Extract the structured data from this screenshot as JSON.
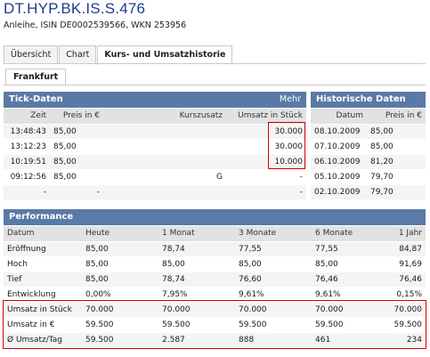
{
  "header": {
    "title": "DT.HYP.BK.IS.S.476",
    "subtitle": "Anleihe, ISIN DE0002539566, WKN 253956"
  },
  "tabs": [
    {
      "label": "Übersicht"
    },
    {
      "label": "Chart"
    },
    {
      "label": "Kurs- und Umsatzhistorie"
    }
  ],
  "subtabs": [
    {
      "label": "Frankfurt"
    }
  ],
  "tick": {
    "title": "Tick-Daten",
    "more": "Mehr",
    "columns": [
      "Zeit",
      "Preis in €",
      "Kurszusatz",
      "Umsatz in Stück"
    ],
    "rows": [
      [
        "13:48:43",
        "85,00",
        "",
        "30.000"
      ],
      [
        "13:12:23",
        "85,00",
        "",
        "30.000"
      ],
      [
        "10:19:51",
        "85,00",
        "",
        "10.000"
      ],
      [
        "09:12:56",
        "85,00",
        "G",
        "-"
      ],
      [
        "-",
        "-",
        "",
        "-"
      ]
    ]
  },
  "hist": {
    "title": "Historische Daten",
    "columns": [
      "Datum",
      "Preis in €"
    ],
    "rows": [
      [
        "08.10.2009",
        "85,00"
      ],
      [
        "07.10.2009",
        "85,00"
      ],
      [
        "06.10.2009",
        "81,20"
      ],
      [
        "05.10.2009",
        "79,70"
      ],
      [
        "02.10.2009",
        "79,70"
      ]
    ]
  },
  "perf": {
    "title": "Performance",
    "columns": [
      "Datum",
      "Heute",
      "1 Monat",
      "3 Monate",
      "6 Monate",
      "1 Jahr"
    ],
    "rows": [
      [
        "Eröffnung",
        "85,00",
        "78,74",
        "77,55",
        "77,55",
        "84,87"
      ],
      [
        "Hoch",
        "85,00",
        "85,00",
        "85,00",
        "85,00",
        "91,69"
      ],
      [
        "Tief",
        "85,00",
        "78,74",
        "76,60",
        "76,46",
        "76,46"
      ],
      [
        "Entwicklung",
        "0,00%",
        "7,95%",
        "9,61%",
        "9,61%",
        "0,15%"
      ],
      [
        "Umsatz in Stück",
        "70.000",
        "70.000",
        "70.000",
        "70.000",
        "70.000"
      ],
      [
        "Umsatz in €",
        "59.500",
        "59.500",
        "59.500",
        "59.500",
        "59.500"
      ],
      [
        "Ø Umsatz/Tag",
        "59.500",
        "2.587",
        "888",
        "461",
        "234"
      ]
    ]
  },
  "colors": {
    "title": "#1d3c8f",
    "section_header": "#5a7aa6",
    "column_header": "#e2e2e2",
    "highlight_box": "#d60000"
  }
}
